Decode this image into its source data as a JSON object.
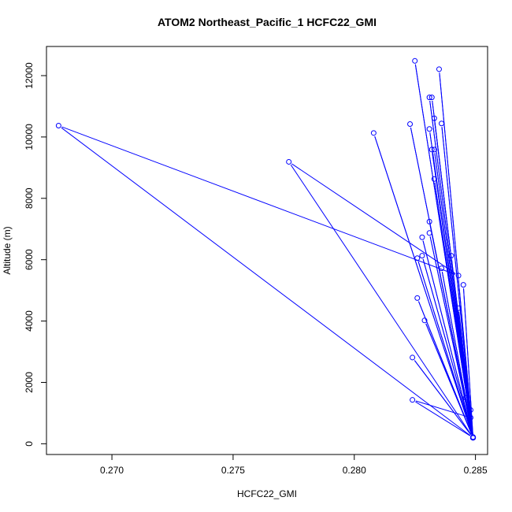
{
  "chart_data": {
    "type": "line",
    "title": "ATOM2 Northeast_Pacific_1 HCFC22_GMI",
    "xlabel": "HCFC22_GMI",
    "ylabel": "Altitude (m)",
    "xlim": [
      0.2673,
      0.2855
    ],
    "ylim": [
      -350,
      12950
    ],
    "xticks": [
      0.27,
      0.275,
      0.28,
      0.285
    ],
    "xtick_labels": [
      "0.270",
      "0.275",
      "0.280",
      "0.285"
    ],
    "yticks": [
      0,
      2000,
      4000,
      6000,
      8000,
      10000,
      12000
    ],
    "ytick_labels": [
      "0",
      "2000",
      "4000",
      "6000",
      "8000",
      "10000",
      "12000"
    ],
    "grid": false,
    "series_color": "#0000ff",
    "markers": "open-circle",
    "series": [
      {
        "x": [
          0.2849,
          0.2848,
          0.2824,
          0.2849,
          0.2824,
          0.2849,
          0.2829,
          0.2849,
          0.2826,
          0.2849,
          0.2843,
          0.2849,
          0.2845,
          0.2849,
          0.2836,
          0.2849,
          0.2826,
          0.2849,
          0.284,
          0.2849,
          0.2828,
          0.2849,
          0.2831,
          0.2849,
          0.2828,
          0.2849,
          0.2831,
          0.2849,
          0.2833,
          0.2849,
          0.2833,
          0.2849,
          0.2808,
          0.2849,
          0.2823,
          0.2849,
          0.2831,
          0.2849,
          0.2832,
          0.2849,
          0.2836,
          0.2849,
          0.2831,
          0.2849,
          0.2832,
          0.2849,
          0.2833,
          0.2849,
          0.2825,
          0.2849,
          0.2835,
          0.2849,
          0.2773,
          0.2843,
          0.2678,
          0.2849,
          0.2845,
          0.2849,
          0.2846,
          0.2849,
          0.2848,
          0.2849,
          0.2849
        ],
        "y": [
          200,
          850,
          1430,
          200,
          2810,
          200,
          4020,
          200,
          4750,
          200,
          4420,
          200,
          5180,
          200,
          5720,
          200,
          6050,
          200,
          6130,
          200,
          6130,
          200,
          6870,
          200,
          6730,
          200,
          7240,
          200,
          8630,
          200,
          9590,
          200,
          10130,
          200,
          10420,
          200,
          10260,
          200,
          11290,
          200,
          10440,
          200,
          11290,
          200,
          9590,
          200,
          10610,
          200,
          12480,
          200,
          12210,
          200,
          9190,
          5480,
          10370,
          200,
          2820,
          200,
          1500,
          200,
          1100,
          200,
          220
        ]
      }
    ]
  }
}
